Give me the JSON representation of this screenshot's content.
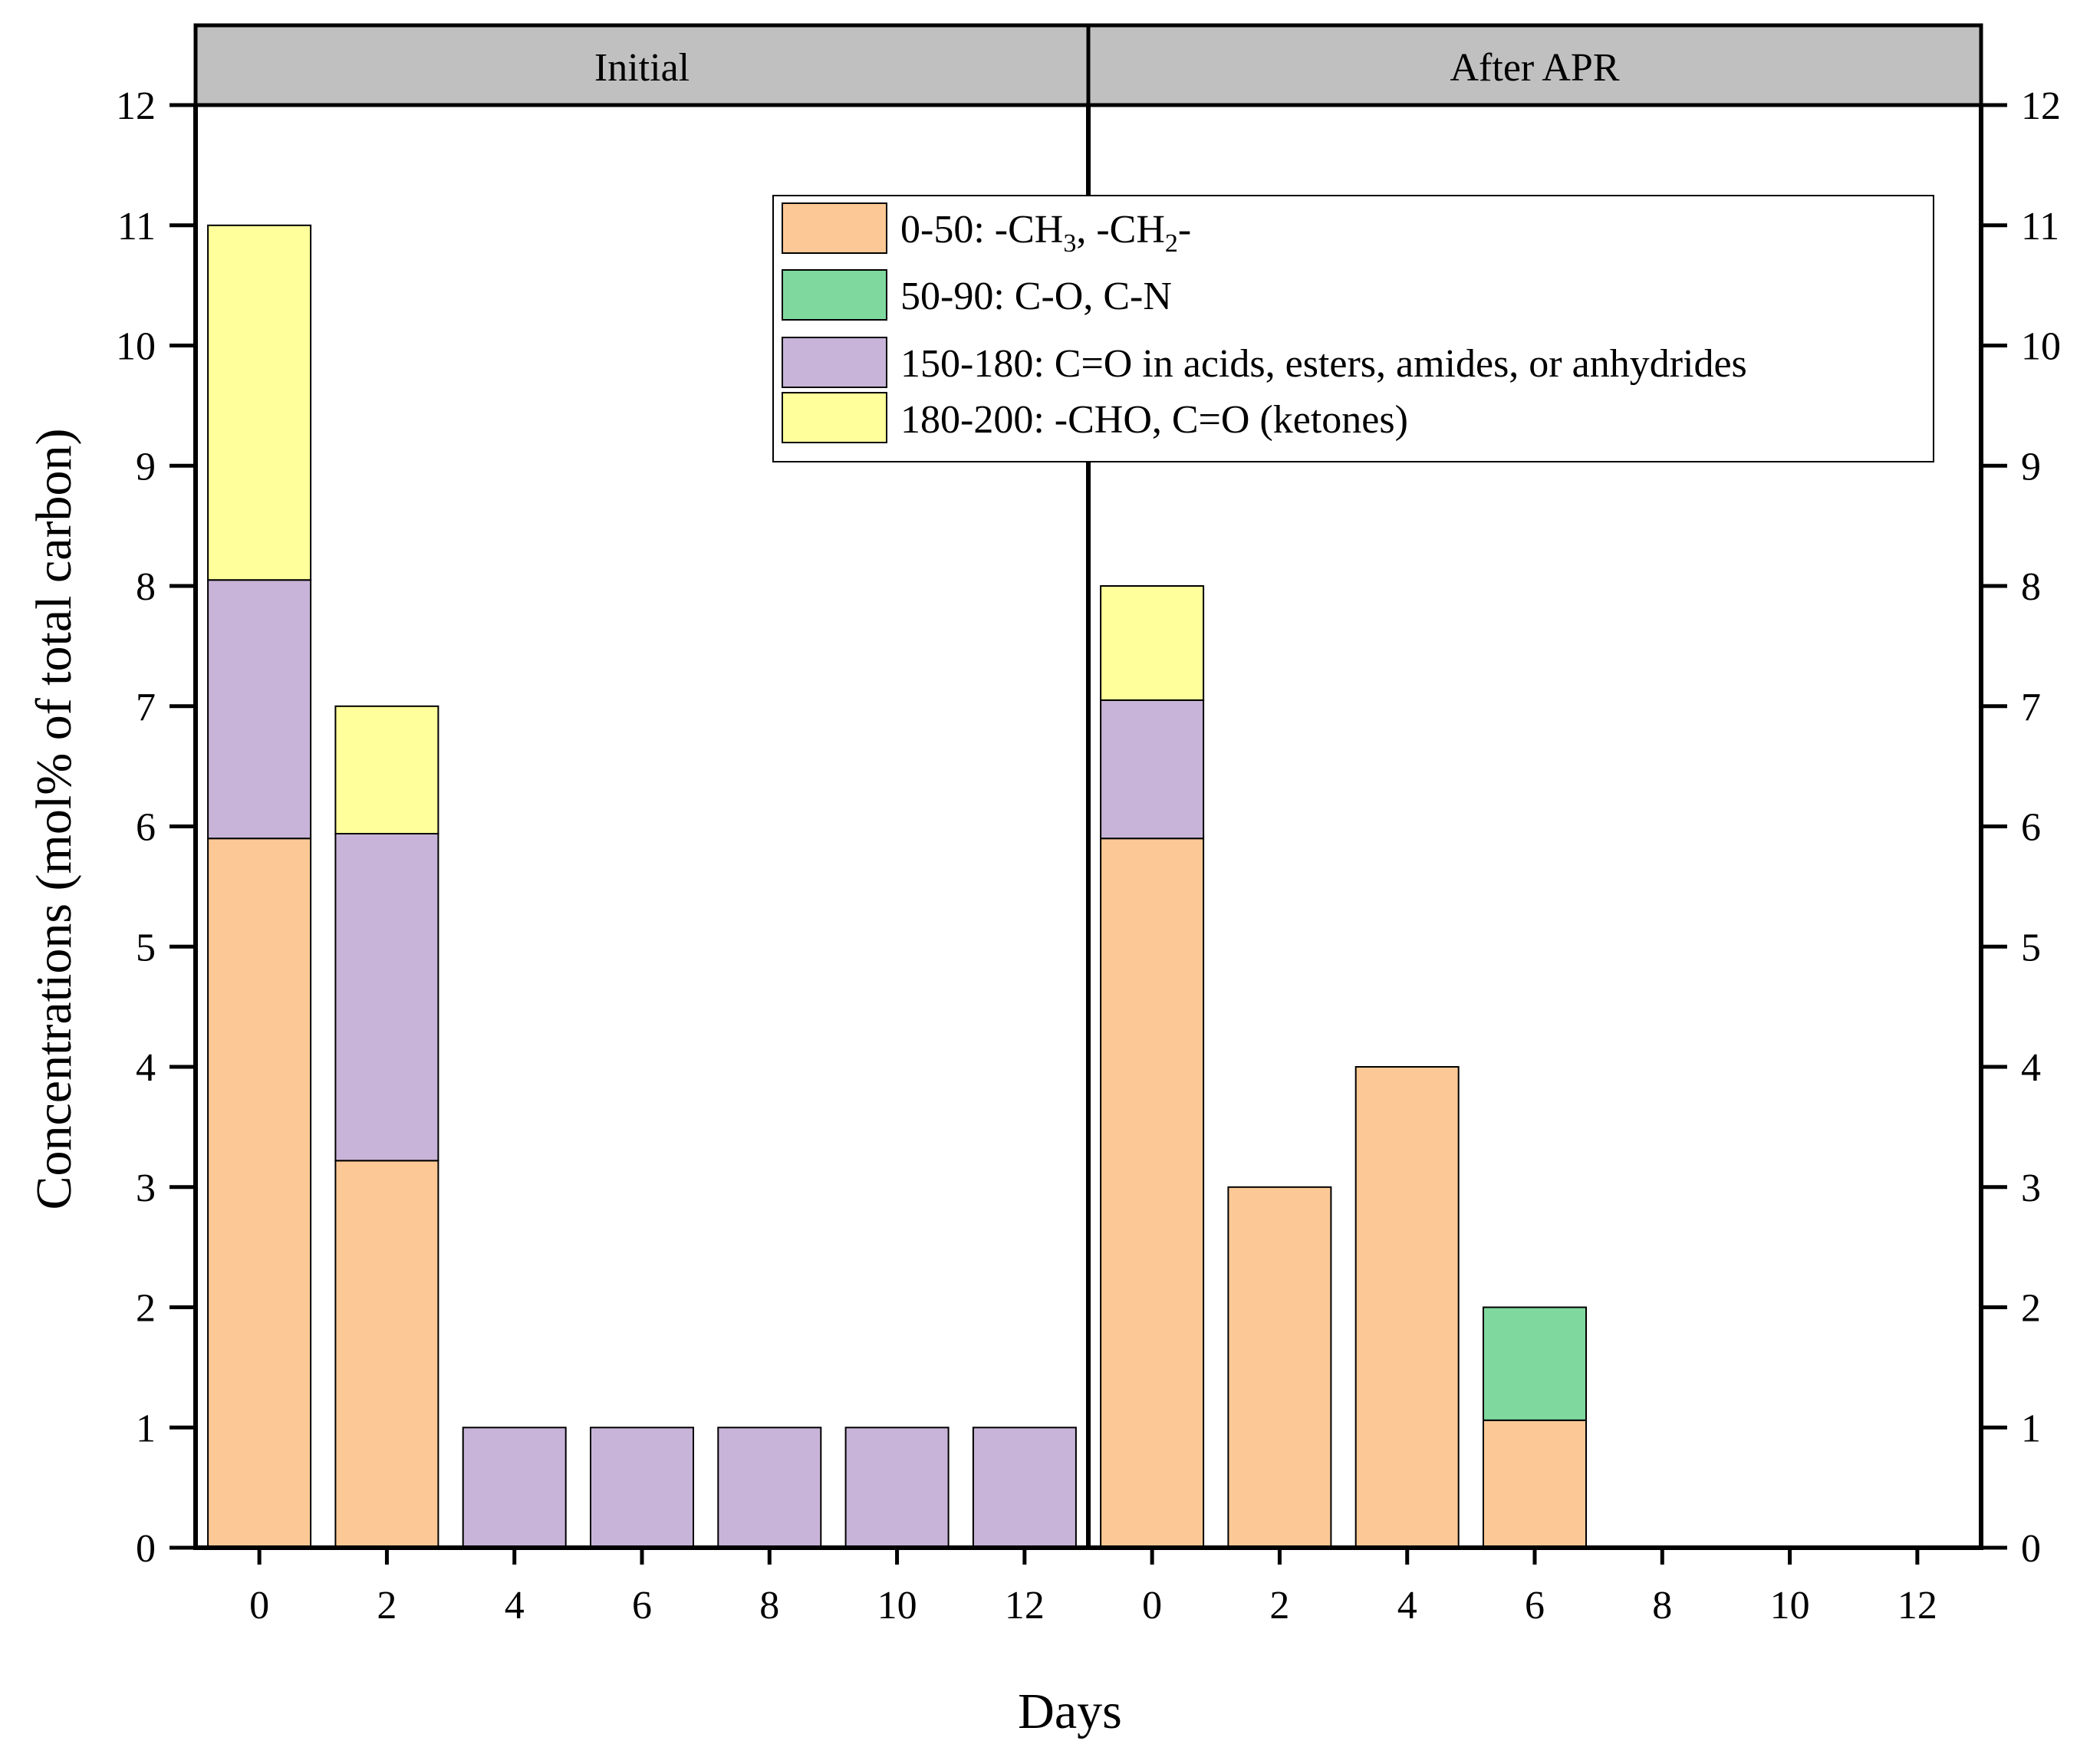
{
  "chart_data": {
    "type": "bar",
    "stacked": true,
    "xlabel": "Days",
    "ylabel": "Concentrations (mol% of total carbon)",
    "ylim": [
      0,
      12
    ],
    "yticks": [
      0,
      1,
      2,
      3,
      4,
      5,
      6,
      7,
      8,
      9,
      10,
      11,
      12
    ],
    "legend_position": "top-right",
    "series": [
      {
        "key": "s1",
        "name": "0-50: -CH3, -CH2-",
        "label_parts": [
          "0-50: -CH",
          "3",
          ", -CH",
          "2",
          "-"
        ],
        "color": "#FCC996"
      },
      {
        "key": "s2",
        "name": "50-90: C-O, C-N",
        "color": "#7FD99E"
      },
      {
        "key": "s3",
        "name": "150-180: C=O in acids, esters, amides, or anhydrides",
        "color": "#C8B4D8"
      },
      {
        "key": "s4",
        "name": "180-200: -CHO, C=O (ketones)",
        "color": "#FFFF9C"
      }
    ],
    "panels": [
      {
        "title": "Initial",
        "categories": [
          "0",
          "2",
          "4",
          "6",
          "8",
          "10",
          "12"
        ],
        "values": {
          "s1": [
            5.9,
            3.22,
            0,
            0,
            0,
            0,
            0
          ],
          "s2": [
            0,
            0,
            0,
            0,
            0,
            0,
            0
          ],
          "s3": [
            2.15,
            2.72,
            1,
            1,
            1,
            1,
            1
          ],
          "s4": [
            2.95,
            1.06,
            0,
            0,
            0,
            0,
            0
          ]
        }
      },
      {
        "title": "After APR",
        "categories": [
          "0",
          "2",
          "4",
          "6",
          "8",
          "10",
          "12"
        ],
        "values": {
          "s1": [
            5.9,
            3.0,
            4.0,
            1.06,
            0,
            0,
            0
          ],
          "s2": [
            0,
            0,
            0,
            0.94,
            0,
            0,
            0
          ],
          "s3": [
            1.15,
            0,
            0,
            0,
            0,
            0,
            0
          ],
          "s4": [
            0.95,
            0,
            0,
            0,
            0,
            0,
            0
          ]
        }
      }
    ]
  }
}
